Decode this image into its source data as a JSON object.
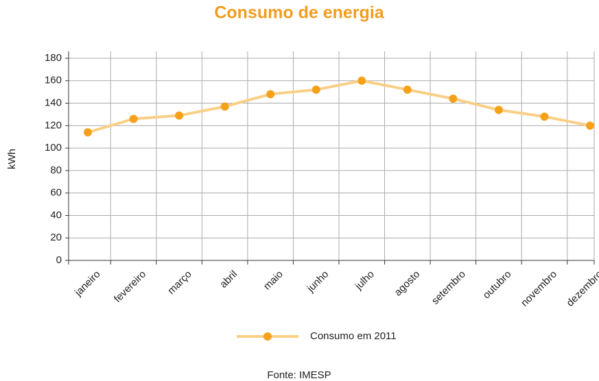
{
  "chart_data": {
    "type": "line",
    "title": "Consumo de energia",
    "y_label": "kWh",
    "categories": [
      "janeiro",
      "fevereiro",
      "março",
      "abril",
      "maio",
      "junho",
      "julho",
      "agosto",
      "setembro",
      "outubro",
      "novembro",
      "dezembro"
    ],
    "series": [
      {
        "name": "Consumo em 2011",
        "color": "#f5a11c",
        "values": [
          114,
          126,
          129,
          137,
          148,
          152,
          160,
          152,
          144,
          134,
          128,
          120
        ]
      }
    ],
    "ylim": [
      0,
      180
    ],
    "yticks": [
      0,
      20,
      40,
      60,
      80,
      100,
      120,
      140,
      160,
      180
    ],
    "grid": true,
    "legend": "bottom",
    "source": "Fonte: IMESP"
  }
}
